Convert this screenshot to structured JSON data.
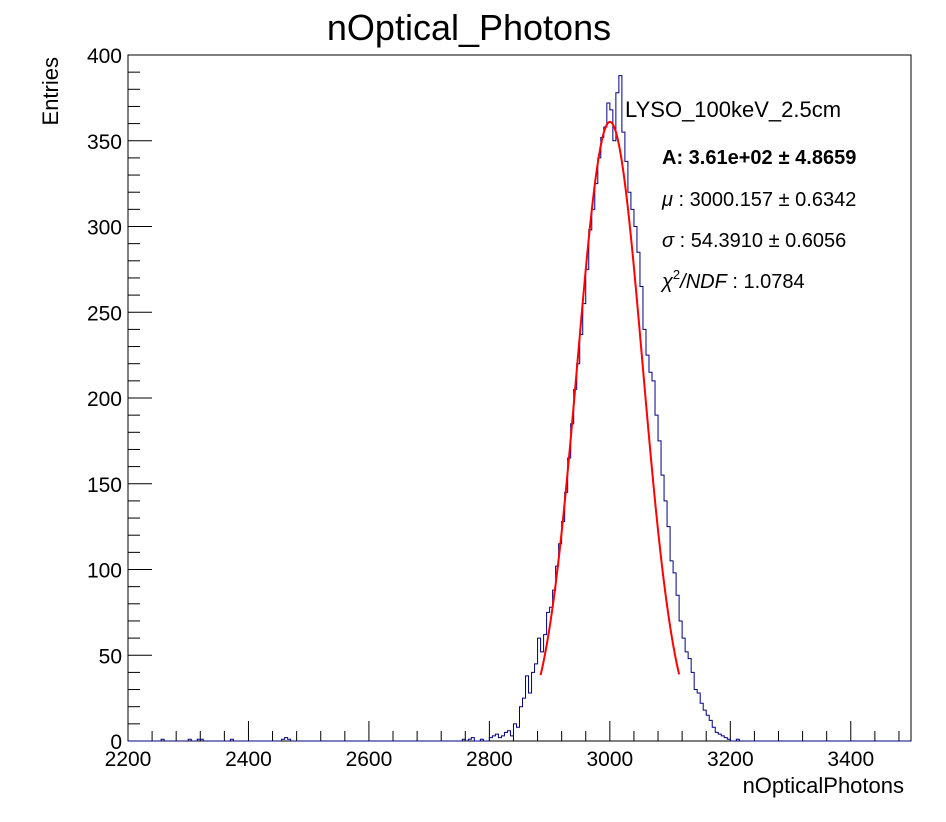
{
  "chart_data": {
    "type": "histogram",
    "title": "nOptical_Photons",
    "xlabel": "nOpticalPhotons",
    "ylabel": "Entries",
    "xlim": [
      2200,
      3500
    ],
    "ylim": [
      0,
      400
    ],
    "x_ticks": [
      2200,
      2400,
      2600,
      2800,
      3000,
      3200,
      3400
    ],
    "y_ticks": [
      0,
      50,
      100,
      150,
      200,
      250,
      300,
      350,
      400
    ],
    "grid": false,
    "bin_width": 5,
    "series": [
      {
        "name": "LYSO_100keV_2.5cm",
        "kind": "histogram",
        "color": "#000080",
        "bins": [
          [
            2255,
            1
          ],
          [
            2300,
            1
          ],
          [
            2315,
            1
          ],
          [
            2320,
            1
          ],
          [
            2370,
            1
          ],
          [
            2455,
            1
          ],
          [
            2460,
            2
          ],
          [
            2465,
            1
          ],
          [
            2755,
            1
          ],
          [
            2765,
            1
          ],
          [
            2770,
            2
          ],
          [
            2785,
            1
          ],
          [
            2800,
            2
          ],
          [
            2805,
            3
          ],
          [
            2810,
            4
          ],
          [
            2815,
            2
          ],
          [
            2820,
            3
          ],
          [
            2825,
            5
          ],
          [
            2830,
            6
          ],
          [
            2835,
            3
          ],
          [
            2840,
            10
          ],
          [
            2845,
            8
          ],
          [
            2850,
            20
          ],
          [
            2855,
            25
          ],
          [
            2860,
            38
          ],
          [
            2865,
            28
          ],
          [
            2870,
            40
          ],
          [
            2875,
            45
          ],
          [
            2880,
            60
          ],
          [
            2885,
            52
          ],
          [
            2890,
            62
          ],
          [
            2895,
            75
          ],
          [
            2900,
            78
          ],
          [
            2905,
            88
          ],
          [
            2910,
            102
          ],
          [
            2915,
            115
          ],
          [
            2920,
            128
          ],
          [
            2925,
            145
          ],
          [
            2930,
            165
          ],
          [
            2935,
            185
          ],
          [
            2940,
            205
          ],
          [
            2945,
            220
          ],
          [
            2950,
            237
          ],
          [
            2955,
            255
          ],
          [
            2960,
            275
          ],
          [
            2965,
            298
          ],
          [
            2970,
            310
          ],
          [
            2975,
            325
          ],
          [
            2980,
            340
          ],
          [
            2985,
            352
          ],
          [
            2990,
            358
          ],
          [
            2995,
            372
          ],
          [
            3000,
            368
          ],
          [
            3005,
            350
          ],
          [
            3010,
            378
          ],
          [
            3015,
            388
          ],
          [
            3020,
            355
          ],
          [
            3025,
            338
          ],
          [
            3030,
            320
          ],
          [
            3035,
            310
          ],
          [
            3040,
            300
          ],
          [
            3045,
            285
          ],
          [
            3050,
            265
          ],
          [
            3055,
            240
          ],
          [
            3060,
            225
          ],
          [
            3065,
            215
          ],
          [
            3070,
            210
          ],
          [
            3075,
            190
          ],
          [
            3080,
            175
          ],
          [
            3085,
            155
          ],
          [
            3090,
            140
          ],
          [
            3095,
            125
          ],
          [
            3100,
            105
          ],
          [
            3105,
            98
          ],
          [
            3110,
            85
          ],
          [
            3115,
            70
          ],
          [
            3120,
            60
          ],
          [
            3125,
            52
          ],
          [
            3130,
            48
          ],
          [
            3135,
            40
          ],
          [
            3140,
            30
          ],
          [
            3145,
            28
          ],
          [
            3150,
            22
          ],
          [
            3155,
            18
          ],
          [
            3160,
            15
          ],
          [
            3165,
            12
          ],
          [
            3170,
            8
          ],
          [
            3175,
            5
          ],
          [
            3180,
            4
          ],
          [
            3185,
            3
          ],
          [
            3190,
            2
          ],
          [
            3195,
            1
          ],
          [
            3210,
            1
          ]
        ]
      },
      {
        "name": "Gaussian fit",
        "kind": "function",
        "color": "#ff0000",
        "A": 361,
        "mu": 3000.157,
        "sigma": 54.391,
        "x_range": [
          2885,
          3115
        ]
      }
    ]
  },
  "legend": {
    "name": "LYSO_100keV_2.5cm",
    "A_label": "A: 3.61e+02",
    "A_err": "± 4.8659",
    "mu_sym": "μ",
    "mu_text": " : 3000.157 ± 0.6342",
    "sigma_sym": "σ",
    "sigma_text": " : 54.3910 ± 0.6056",
    "chi_sym": "χ",
    "chi_sup": "2",
    "chi_ndf": "/NDF",
    "chi_text": " : 1.0784"
  }
}
